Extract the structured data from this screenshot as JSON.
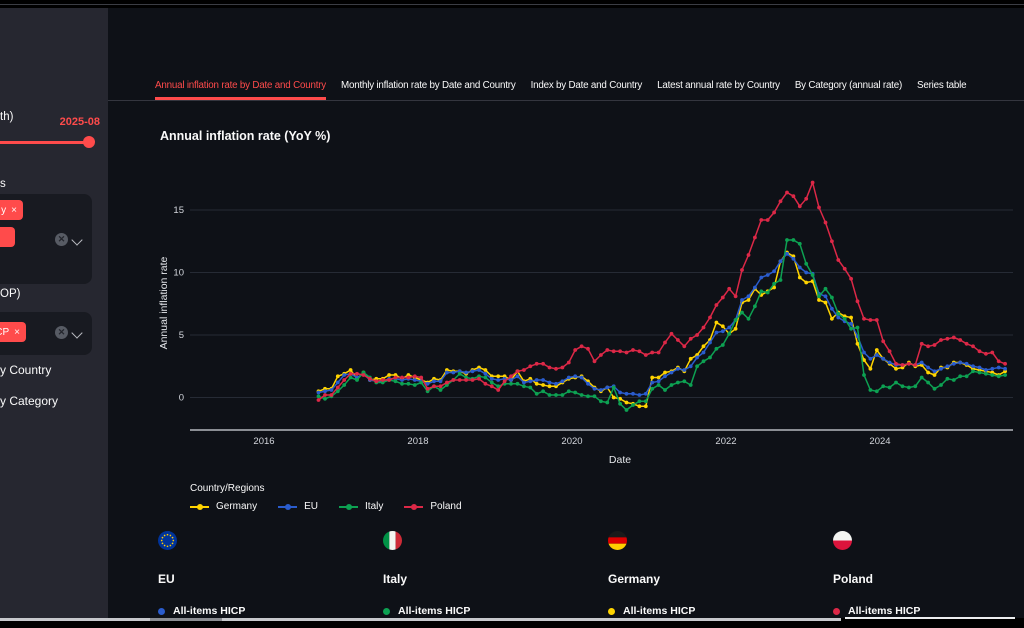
{
  "app": {
    "accent": "#ff4b4b"
  },
  "sidebar": {
    "month_label_fragment": "th)",
    "slider_value": "2025-08",
    "regions_label_fragment": "s",
    "region_chip_fragment": "y",
    "chip_remove_glyph": "×",
    "category_label_fragment": "OP)",
    "category_chip_fragment": "CP",
    "nav_items": [
      {
        "label_fragment": "y Country"
      },
      {
        "label_fragment": "y Category"
      }
    ]
  },
  "tabs": [
    {
      "label": "Annual inflation rate by Date and Country",
      "active": true
    },
    {
      "label": "Monthly inflation rate by Date and Country",
      "active": false
    },
    {
      "label": "Index by Date and Country",
      "active": false
    },
    {
      "label": "Latest annual rate by Country",
      "active": false
    },
    {
      "label": "By Category (annual rate)",
      "active": false
    },
    {
      "label": "Series table",
      "active": false
    }
  ],
  "chart_data": {
    "type": "line",
    "title": "Annual inflation rate (YoY %)",
    "xlabel": "Date",
    "ylabel": "Annual inflation rate",
    "legend_title": "Country/Regions",
    "legend_position": "bottom-left",
    "grid": true,
    "x_start": "2016-09",
    "x_end": "2025-08",
    "x_unit": "month",
    "x_ticks": [
      2016,
      2018,
      2020,
      2022,
      2024
    ],
    "y_ticks": [
      0,
      5,
      10,
      15
    ],
    "ylim": [
      -2.8,
      18.6
    ],
    "series": [
      {
        "name": "Germany",
        "color": "#FFD400",
        "values": [
          0.5,
          0.7,
          0.7,
          1.7,
          1.9,
          2.2,
          1.5,
          2.0,
          1.4,
          1.5,
          1.5,
          1.8,
          1.8,
          1.5,
          1.8,
          1.6,
          1.4,
          1.2,
          1.5,
          1.4,
          2.2,
          2.1,
          2.1,
          1.9,
          2.2,
          2.4,
          2.2,
          1.7,
          1.7,
          1.7,
          1.4,
          2.1,
          1.3,
          1.5,
          1.1,
          1.0,
          0.9,
          0.9,
          1.2,
          1.5,
          1.6,
          1.7,
          1.3,
          0.8,
          0.5,
          0.8,
          0.0,
          -0.1,
          -0.4,
          -0.5,
          -0.7,
          -0.7,
          1.6,
          1.6,
          2.0,
          2.1,
          2.4,
          2.1,
          3.1,
          3.4,
          4.1,
          4.6,
          6.0,
          5.7,
          5.1,
          5.5,
          7.6,
          7.8,
          8.7,
          8.2,
          8.5,
          8.8,
          10.9,
          11.6,
          11.3,
          9.6,
          9.2,
          9.3,
          7.8,
          7.6,
          6.3,
          6.8,
          6.5,
          6.4,
          4.3,
          3.0,
          2.3,
          3.8,
          3.1,
          2.7,
          2.3,
          2.4,
          2.8,
          2.5,
          2.6,
          2.0,
          1.8,
          2.4,
          2.4,
          2.8,
          2.8,
          2.6,
          2.3,
          2.2,
          2.1,
          2.0,
          1.8,
          2.1
        ]
      },
      {
        "name": "EU",
        "color": "#2A5CCD",
        "values": [
          0.4,
          0.5,
          0.6,
          1.2,
          1.8,
          1.9,
          1.6,
          1.9,
          1.4,
          1.3,
          1.3,
          1.5,
          1.5,
          1.4,
          1.5,
          1.4,
          1.3,
          1.1,
          1.3,
          1.3,
          2.0,
          2.0,
          2.1,
          2.0,
          2.1,
          2.2,
          1.9,
          1.5,
          1.4,
          1.5,
          1.4,
          1.7,
          1.2,
          1.3,
          1.4,
          1.4,
          1.2,
          1.1,
          1.3,
          1.6,
          1.7,
          1.6,
          1.1,
          0.7,
          0.6,
          0.8,
          0.9,
          0.4,
          0.3,
          0.3,
          0.2,
          0.3,
          1.2,
          1.3,
          1.7,
          2.0,
          2.3,
          2.2,
          2.5,
          3.2,
          3.6,
          4.4,
          5.2,
          5.3,
          5.6,
          6.2,
          7.8,
          8.1,
          8.8,
          9.6,
          9.8,
          10.1,
          10.9,
          11.5,
          11.1,
          10.4,
          10.0,
          9.9,
          8.3,
          8.1,
          7.1,
          6.4,
          6.1,
          5.9,
          4.9,
          3.6,
          3.1,
          3.4,
          3.1,
          2.8,
          2.6,
          2.6,
          2.7,
          2.6,
          2.8,
          2.4,
          2.1,
          2.3,
          2.5,
          2.7,
          2.8,
          2.7,
          2.5,
          2.4,
          2.2,
          2.3,
          2.4,
          2.3
        ]
      },
      {
        "name": "Italy",
        "color": "#0DA152",
        "values": [
          0.1,
          -0.1,
          0.1,
          0.5,
          1.0,
          1.6,
          1.4,
          2.0,
          1.6,
          1.2,
          1.2,
          1.4,
          1.3,
          1.1,
          1.1,
          1.0,
          1.2,
          0.5,
          0.9,
          0.6,
          1.0,
          1.4,
          1.9,
          1.6,
          1.5,
          1.7,
          1.6,
          1.2,
          0.9,
          1.1,
          1.1,
          1.1,
          0.9,
          0.8,
          0.3,
          0.5,
          0.2,
          0.2,
          0.2,
          0.5,
          0.4,
          0.2,
          0.1,
          0.1,
          -0.3,
          -0.4,
          0.8,
          -0.5,
          -1.0,
          -0.6,
          -0.3,
          -0.3,
          0.7,
          1.0,
          0.6,
          1.0,
          1.2,
          1.3,
          1.0,
          2.5,
          2.9,
          3.2,
          3.9,
          4.2,
          5.1,
          6.2,
          6.8,
          6.3,
          7.3,
          8.5,
          8.4,
          9.1,
          9.4,
          12.6,
          12.6,
          12.3,
          10.7,
          9.8,
          8.1,
          8.7,
          8.0,
          6.7,
          6.3,
          5.5,
          5.6,
          1.8,
          0.6,
          0.5,
          0.9,
          0.8,
          1.2,
          0.9,
          0.8,
          0.9,
          1.6,
          1.2,
          0.7,
          1.0,
          1.5,
          1.4,
          1.7,
          1.7,
          2.1,
          2.0,
          1.9,
          1.8,
          1.7,
          1.8
        ]
      },
      {
        "name": "Poland",
        "color": "#DC2847",
        "values": [
          -0.2,
          0.2,
          0.2,
          0.8,
          1.4,
          1.9,
          1.9,
          1.8,
          1.5,
          1.3,
          1.4,
          1.4,
          1.6,
          1.6,
          1.6,
          1.7,
          1.6,
          0.7,
          0.9,
          0.9,
          1.2,
          1.4,
          1.4,
          1.4,
          1.4,
          1.5,
          1.1,
          0.9,
          0.6,
          1.3,
          1.7,
          2.1,
          2.2,
          2.5,
          2.7,
          2.7,
          2.4,
          2.3,
          2.4,
          2.8,
          3.8,
          4.1,
          3.9,
          2.9,
          3.4,
          3.8,
          3.7,
          3.7,
          3.6,
          3.8,
          3.7,
          3.4,
          3.6,
          3.6,
          4.4,
          5.1,
          4.6,
          4.1,
          4.7,
          5.0,
          5.6,
          6.4,
          7.4,
          8.0,
          8.7,
          8.1,
          10.2,
          11.4,
          12.8,
          14.2,
          14.2,
          14.8,
          15.7,
          16.4,
          16.1,
          15.3,
          15.9,
          17.2,
          15.2,
          14.0,
          12.5,
          11.0,
          10.3,
          9.5,
          7.7,
          6.3,
          6.2,
          6.2,
          4.5,
          3.7,
          2.7,
          2.6,
          2.7,
          2.6,
          4.3,
          4.1,
          4.2,
          4.6,
          4.7,
          4.8,
          4.6,
          4.3,
          4.1,
          3.7,
          3.5,
          3.6,
          2.9,
          2.7
        ]
      }
    ]
  },
  "cards": [
    {
      "country": "EU",
      "flag": "eu",
      "items": [
        {
          "label": "All-items HICP",
          "color": "#2A5CCD"
        }
      ]
    },
    {
      "country": "Italy",
      "flag": "italy",
      "items": [
        {
          "label": "All-items HICP",
          "color": "#0DA152"
        }
      ]
    },
    {
      "country": "Germany",
      "flag": "germany",
      "items": [
        {
          "label": "All-items HICP",
          "color": "#FFD400"
        }
      ]
    },
    {
      "country": "Poland",
      "flag": "poland",
      "items": [
        {
          "label": "All-items HICP",
          "color": "#DC2847"
        }
      ]
    }
  ]
}
